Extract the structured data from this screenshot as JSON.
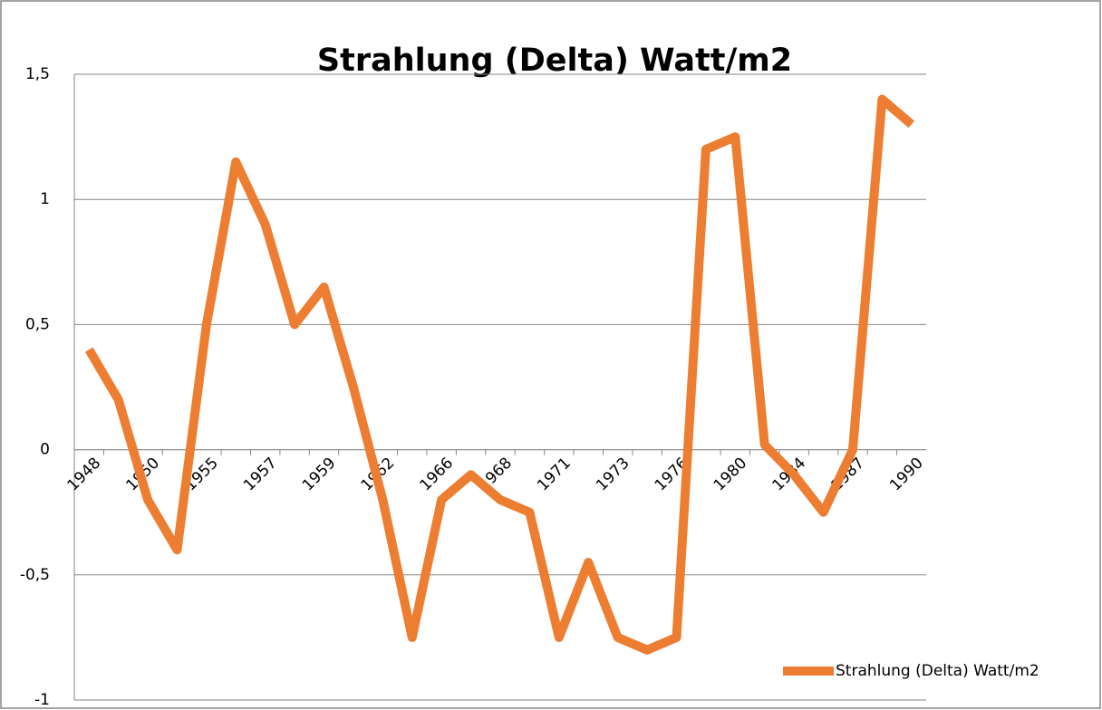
{
  "chart_data": {
    "type": "line",
    "title": "Strahlung (Delta) Watt/m2",
    "categories": [
      "1948",
      null,
      "1950",
      null,
      "1955",
      null,
      "1957",
      null,
      "1959",
      null,
      "1962",
      null,
      "1966",
      null,
      "1968",
      null,
      "1971",
      null,
      "1973",
      null,
      "1976",
      null,
      "1980",
      null,
      "1984",
      null,
      "1987",
      null,
      "1990"
    ],
    "series": [
      {
        "name": "Strahlung (Delta) Watt/m2",
        "color": "#ed7d31",
        "values": [
          0.4,
          0.2,
          -0.2,
          -0.4,
          0.5,
          1.15,
          0.9,
          0.5,
          0.65,
          0.25,
          -0.2,
          -0.75,
          -0.2,
          -0.1,
          -0.2,
          -0.25,
          -0.75,
          -0.45,
          -0.75,
          -0.8,
          -0.75,
          1.2,
          1.25,
          0.02,
          -0.1,
          -0.25,
          0,
          1.4,
          1.3
        ]
      }
    ],
    "ylim": [
      -1,
      1.5
    ],
    "yticks": [
      -1,
      {
        "value": -0.5,
        "label": "-0,5"
      },
      0,
      {
        "value": 0.5,
        "label": "0,5"
      },
      1,
      {
        "value": 1.5,
        "label": "1,5"
      }
    ],
    "grid": true,
    "legend": "right"
  }
}
